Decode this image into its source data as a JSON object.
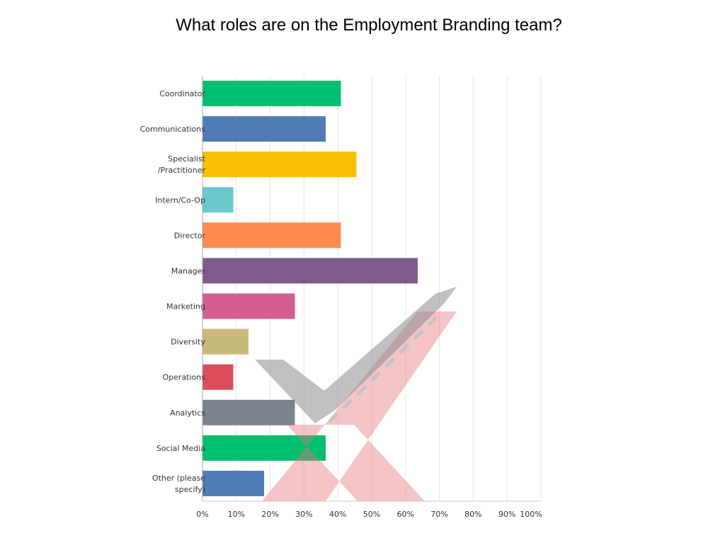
{
  "title": "What roles are on the Employment Branding team?",
  "watermark": "check-and-cross-watermark",
  "chart_data": {
    "type": "bar",
    "orientation": "horizontal",
    "title": "What roles are on the Employment Branding team?",
    "categories": [
      [
        "Coordinator"
      ],
      [
        "Communications"
      ],
      [
        "Specialist",
        "/Practitioner"
      ],
      [
        "Intern/Co-Op"
      ],
      [
        "Director"
      ],
      [
        "Manager"
      ],
      [
        "Marketing"
      ],
      [
        "Diversity"
      ],
      [
        "Operations"
      ],
      [
        "Analytics"
      ],
      [
        "Social Media"
      ],
      [
        "Other (please",
        "specify)"
      ]
    ],
    "values": [
      40.9,
      36.4,
      45.5,
      9.1,
      40.9,
      63.6,
      27.3,
      13.6,
      9.1,
      27.3,
      36.4,
      18.2
    ],
    "colors": [
      "#00bf6f",
      "#507cb6",
      "#f9be00",
      "#6bc8cd",
      "#ff8b4f",
      "#7f5b8d",
      "#d25f90",
      "#c9b97b",
      "#db4d5c",
      "#7b848c",
      "#00bf6f",
      "#507cb6"
    ],
    "xlim": [
      0,
      100
    ],
    "xticks": [
      "0%",
      "10%",
      "20%",
      "30%",
      "40%",
      "50%",
      "60%",
      "70%",
      "80%",
      "90%",
      "100%"
    ],
    "grid": true,
    "xlabel": "",
    "ylabel": ""
  }
}
